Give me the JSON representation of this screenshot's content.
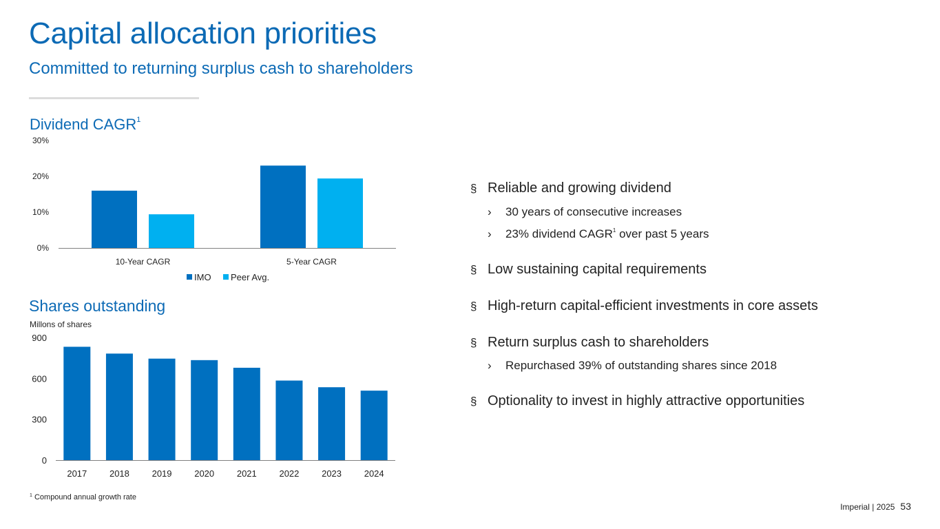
{
  "page": {
    "title": "Capital allocation priorities",
    "subtitle": "Committed to returning surplus cash to shareholders"
  },
  "dividend_section": {
    "heading": "Dividend CAGR",
    "heading_sup": "1"
  },
  "shares_section": {
    "heading": "Shares outstanding",
    "unit_label": "Millons of shares"
  },
  "colors": {
    "imo": "#0070c0",
    "peer": "#00b0f0",
    "title": "#0c6ab5",
    "axis": "#7f7f7f"
  },
  "chart_data": [
    {
      "type": "bar",
      "title": "Dividend CAGR",
      "categories": [
        "10-Year CAGR",
        "5-Year CAGR"
      ],
      "series": [
        {
          "name": "IMO",
          "values": [
            16,
            23
          ]
        },
        {
          "name": "Peer Avg.",
          "values": [
            9.4,
            19.4
          ]
        }
      ],
      "ylim": [
        0,
        30
      ],
      "yticks": [
        0,
        10,
        20,
        30
      ],
      "ytick_labels": [
        "0%",
        "10%",
        "20%",
        "30%"
      ],
      "legend": "bottom",
      "grid": false
    },
    {
      "type": "bar",
      "title": "Shares outstanding",
      "ylabel": "Millons of shares",
      "categories": [
        "2017",
        "2018",
        "2019",
        "2020",
        "2021",
        "2022",
        "2023",
        "2024"
      ],
      "values": [
        832,
        782,
        745,
        734,
        678,
        584,
        535,
        510
      ],
      "ylim": [
        0,
        900
      ],
      "yticks": [
        0,
        300,
        600,
        900
      ],
      "ytick_labels": [
        "0",
        "300",
        "600",
        "900"
      ],
      "grid": false
    }
  ],
  "bullets": [
    {
      "mark": "§",
      "text": "Reliable and growing dividend",
      "subs": [
        {
          "mark": "›",
          "text": "30 years of consecutive increases",
          "sup": "",
          "after": ""
        },
        {
          "mark": "›",
          "text": "23% dividend CAGR",
          "sup": "1",
          "after": " over past 5 years"
        }
      ]
    },
    {
      "mark": "§",
      "text": "Low sustaining capital requirements",
      "subs": []
    },
    {
      "mark": "§",
      "text": "High-return capital-efficient investments in core assets",
      "subs": []
    },
    {
      "mark": "§",
      "text": "Return surplus cash to shareholders",
      "subs": [
        {
          "mark": "›",
          "text": "Repurchased 39% of outstanding shares since 2018",
          "sup": "",
          "after": ""
        }
      ]
    },
    {
      "mark": "§",
      "text": "Optionality to invest in highly attractive opportunities",
      "subs": []
    }
  ],
  "footnote": {
    "sup": "1",
    "text": "Compound annual growth rate"
  },
  "footer": {
    "company": "Imperial",
    "separator": "|",
    "year": "2025",
    "page_number": "53"
  }
}
